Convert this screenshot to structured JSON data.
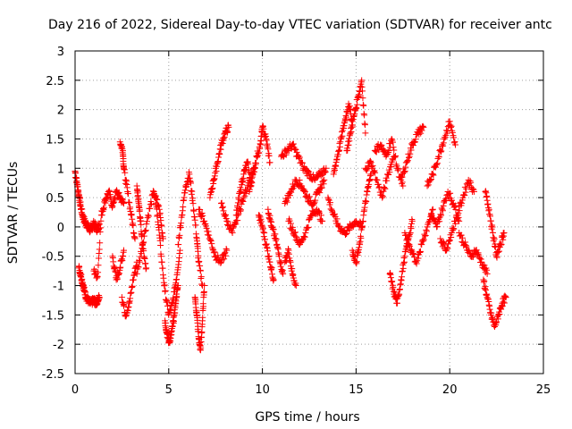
{
  "chart_data": {
    "type": "scatter",
    "title": "Day 216 of 2022, Sidereal Day-to-day VTEC variation (SDTVAR) for receiver antc",
    "xlabel": "GPS time / hours",
    "ylabel": "SDTVAR / TECUs",
    "xlim": [
      0,
      25
    ],
    "ylim": [
      -2.5,
      3
    ],
    "x_ticks": [
      0,
      5,
      10,
      15,
      20,
      25
    ],
    "x_tick_labels": [
      "0",
      "5",
      "10",
      "15",
      "20",
      "25"
    ],
    "y_ticks": [
      -2.5,
      -2,
      -1.5,
      -1,
      -0.5,
      0,
      0.5,
      1,
      1.5,
      2,
      2.5,
      3
    ],
    "y_tick_labels": [
      "-2.5",
      "-2",
      "-1.5",
      "-1",
      "-0.5",
      "0",
      "0.5",
      "1",
      "1.5",
      "2",
      "2.5",
      "3"
    ],
    "grid": true,
    "marker": "+",
    "marker_color": "#ff0000",
    "series": [
      {
        "name": "SDTVAR",
        "tracks": [
          {
            "x": [
              0.0,
              0.1,
              0.2,
              0.3,
              0.4,
              0.5,
              0.6,
              0.7,
              0.8,
              0.9,
              1.0,
              1.1,
              1.2,
              1.3
            ],
            "y": [
              0.95,
              0.75,
              0.55,
              0.35,
              0.2,
              0.1,
              0.05,
              0.0,
              -0.05,
              0.0,
              0.05,
              0.0,
              -0.05,
              0.05
            ]
          },
          {
            "x": [
              0.2,
              0.3,
              0.4,
              0.5,
              0.6,
              0.7,
              0.8,
              0.9,
              1.0,
              1.1,
              1.2,
              1.3
            ],
            "y": [
              -0.7,
              -0.8,
              -0.95,
              -1.1,
              -1.2,
              -1.25,
              -1.3,
              -1.28,
              -1.25,
              -1.3,
              -1.25,
              -1.2
            ]
          },
          {
            "x": [
              1.0,
              1.2,
              1.4,
              1.6,
              1.8,
              2.0,
              2.2,
              2.4,
              2.6
            ],
            "y": [
              -0.75,
              -0.85,
              0.2,
              0.45,
              0.6,
              0.35,
              0.6,
              0.5,
              0.4
            ]
          },
          {
            "x": [
              2.0,
              2.2,
              2.4,
              2.6
            ],
            "y": [
              -0.5,
              -0.9,
              -0.7,
              -0.4
            ]
          },
          {
            "x": [
              2.4,
              2.55,
              2.6,
              2.8,
              3.0,
              3.2
            ],
            "y": [
              1.45,
              1.3,
              1.0,
              0.6,
              0.2,
              -0.2
            ]
          },
          {
            "x": [
              2.5,
              2.7,
              2.9,
              3.1,
              3.3
            ],
            "y": [
              -1.2,
              -1.5,
              -1.3,
              -0.9,
              -0.6
            ]
          },
          {
            "x": [
              3.3,
              3.6,
              3.9,
              4.2,
              4.5,
              4.7
            ],
            "y": [
              -0.8,
              -0.3,
              0.2,
              0.6,
              0.3,
              -0.2
            ]
          },
          {
            "x": [
              3.3,
              3.4,
              3.5,
              3.6,
              3.8
            ],
            "y": [
              0.7,
              0.4,
              0.1,
              -0.3,
              -0.7
            ]
          },
          {
            "x": [
              4.2,
              4.4,
              4.6,
              4.8,
              5.0,
              5.2,
              5.4,
              5.6
            ],
            "y": [
              0.6,
              0.2,
              -0.5,
              -1.1,
              -1.5,
              -1.3,
              -0.9,
              -0.4
            ]
          },
          {
            "x": [
              4.8,
              4.9,
              5.0,
              5.1,
              5.2,
              5.3,
              5.4,
              5.5
            ],
            "y": [
              -1.6,
              -1.8,
              -1.95,
              -1.9,
              -1.7,
              -1.5,
              -1.2,
              -1.0
            ]
          },
          {
            "x": [
              5.5,
              5.7,
              5.9,
              6.1,
              6.3,
              6.5,
              6.6,
              6.8
            ],
            "y": [
              -0.3,
              0.2,
              0.7,
              0.9,
              0.4,
              -0.2,
              -0.6,
              -1.0
            ]
          },
          {
            "x": [
              6.4,
              6.5,
              6.6,
              6.7,
              6.8,
              6.9
            ],
            "y": [
              -1.2,
              -1.5,
              -1.9,
              -2.1,
              -1.6,
              -1.0
            ]
          },
          {
            "x": [
              6.6,
              6.9,
              7.2,
              7.5,
              7.8,
              8.1
            ],
            "y": [
              0.3,
              0.1,
              -0.2,
              -0.5,
              -0.6,
              -0.4
            ]
          },
          {
            "x": [
              7.2,
              7.4,
              7.6,
              7.8,
              8.0,
              8.2
            ],
            "y": [
              0.5,
              0.8,
              1.1,
              1.4,
              1.6,
              1.7
            ]
          },
          {
            "x": [
              7.8,
              8.1,
              8.4,
              8.7,
              9.0,
              9.3,
              9.6
            ],
            "y": [
              0.4,
              0.1,
              -0.1,
              0.2,
              0.5,
              0.8,
              1.0
            ]
          },
          {
            "x": [
              8.6,
              8.8,
              9.0,
              9.2,
              9.4
            ],
            "y": [
              0.2,
              0.6,
              0.9,
              1.1,
              0.7
            ]
          },
          {
            "x": [
              9.3,
              9.5,
              9.7,
              9.9,
              10.0,
              10.2,
              10.4
            ],
            "y": [
              0.6,
              0.9,
              1.2,
              1.4,
              1.7,
              1.5,
              1.1
            ]
          },
          {
            "x": [
              9.8,
              10.0,
              10.2,
              10.4,
              10.6
            ],
            "y": [
              0.2,
              0.0,
              -0.3,
              -0.6,
              -0.9
            ]
          },
          {
            "x": [
              10.3,
              10.5,
              10.7,
              10.9,
              11.1
            ],
            "y": [
              0.3,
              0.0,
              -0.2,
              -0.5,
              -0.8
            ]
          },
          {
            "x": [
              11.0,
              11.3,
              11.6,
              11.9,
              12.2,
              12.5,
              12.8,
              13.1,
              13.4
            ],
            "y": [
              1.2,
              1.3,
              1.4,
              1.2,
              1.0,
              0.9,
              0.8,
              0.9,
              1.0
            ]
          },
          {
            "x": [
              11.2,
              11.5,
              11.8,
              12.1,
              12.4,
              12.7,
              13.0,
              13.3
            ],
            "y": [
              0.4,
              0.6,
              0.8,
              0.7,
              0.5,
              0.4,
              0.6,
              0.8
            ]
          },
          {
            "x": [
              11.4,
              11.7,
              12.0,
              12.3,
              12.6,
              12.9,
              13.2
            ],
            "y": [
              0.1,
              -0.1,
              -0.3,
              -0.1,
              0.2,
              0.3,
              0.1
            ]
          },
          {
            "x": [
              11.2,
              11.4,
              11.6,
              11.8
            ],
            "y": [
              -0.6,
              -0.4,
              -0.8,
              -1.0
            ]
          },
          {
            "x": [
              13.5,
              13.8,
              14.1,
              14.4,
              14.7,
              15.0,
              15.3
            ],
            "y": [
              0.5,
              0.2,
              0.0,
              -0.1,
              0.0,
              0.1,
              0.0
            ]
          },
          {
            "x": [
              13.8,
              14.0,
              14.2,
              14.4,
              14.6,
              14.8
            ],
            "y": [
              0.9,
              1.2,
              1.5,
              1.8,
              2.1,
              1.8
            ]
          },
          {
            "x": [
              14.5,
              14.7,
              14.9,
              15.1,
              15.3,
              15.5
            ],
            "y": [
              1.3,
              1.6,
              1.9,
              2.2,
              2.5,
              1.6
            ]
          },
          {
            "x": [
              14.8,
              15.0,
              15.2,
              15.4,
              15.6,
              15.8
            ],
            "y": [
              -0.4,
              -0.6,
              -0.3,
              0.2,
              0.6,
              0.9
            ]
          },
          {
            "x": [
              15.5,
              15.8,
              16.1,
              16.4,
              16.7,
              17.0
            ],
            "y": [
              1.0,
              1.1,
              0.8,
              0.5,
              0.9,
              1.2
            ]
          },
          {
            "x": [
              16.0,
              16.3,
              16.6,
              16.9,
              17.2,
              17.5
            ],
            "y": [
              1.3,
              1.4,
              1.2,
              1.5,
              1.0,
              0.7
            ]
          },
          {
            "x": [
              16.8,
              17.0,
              17.2,
              17.4,
              17.6,
              17.8,
              18.0
            ],
            "y": [
              -0.8,
              -1.1,
              -1.3,
              -0.9,
              -0.5,
              -0.2,
              0.1
            ]
          },
          {
            "x": [
              17.4,
              17.7,
              18.0,
              18.3,
              18.6
            ],
            "y": [
              0.8,
              1.1,
              1.4,
              1.6,
              1.7
            ]
          },
          {
            "x": [
              17.6,
              17.9,
              18.2,
              18.5,
              18.8,
              19.1
            ],
            "y": [
              -0.1,
              -0.4,
              -0.6,
              -0.3,
              0.0,
              0.3
            ]
          },
          {
            "x": [
              18.8,
              19.1,
              19.4,
              19.7,
              20.0,
              20.3
            ],
            "y": [
              0.7,
              0.9,
              1.2,
              1.5,
              1.8,
              1.4
            ]
          },
          {
            "x": [
              19.0,
              19.3,
              19.6,
              19.9,
              20.2,
              20.5
            ],
            "y": [
              0.2,
              0.0,
              0.3,
              0.6,
              0.4,
              0.1
            ]
          },
          {
            "x": [
              19.5,
              19.8,
              20.1,
              20.4,
              20.7,
              21.0,
              21.3
            ],
            "y": [
              -0.2,
              -0.4,
              -0.1,
              0.2,
              0.5,
              0.8,
              0.6
            ]
          },
          {
            "x": [
              20.5,
              20.8,
              21.1,
              21.4,
              21.7,
              22.0
            ],
            "y": [
              -0.1,
              -0.3,
              -0.5,
              -0.4,
              -0.6,
              -0.8
            ]
          },
          {
            "x": [
              21.8,
              22.0,
              22.2,
              22.4,
              22.6,
              22.8,
              23.0
            ],
            "y": [
              -0.9,
              -1.2,
              -1.5,
              -1.7,
              -1.5,
              -1.3,
              -1.2
            ]
          },
          {
            "x": [
              21.9,
              22.1,
              22.3,
              22.5,
              22.7,
              22.9
            ],
            "y": [
              0.6,
              0.3,
              -0.1,
              -0.5,
              -0.3,
              -0.1
            ]
          }
        ]
      }
    ]
  }
}
